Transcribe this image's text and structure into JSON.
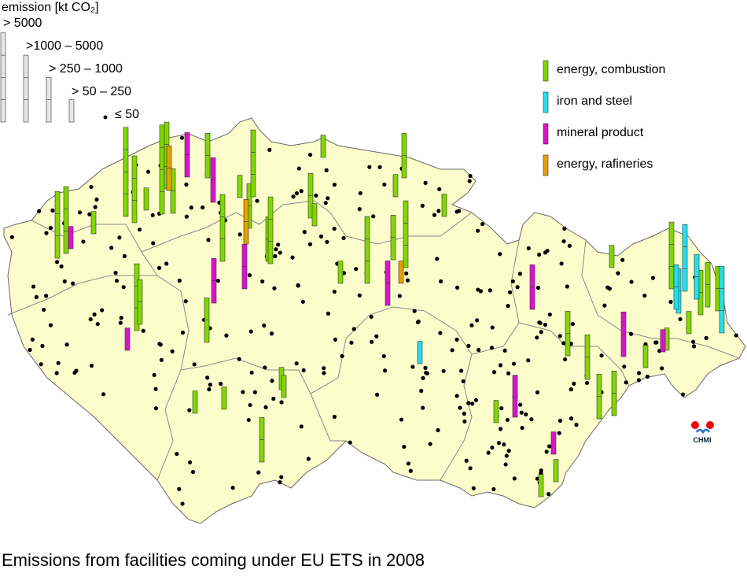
{
  "legend": {
    "title": "emission [kt CO₂]",
    "classes": [
      "> 5000",
      ">1000 – 5000",
      "> 250 – 1000",
      "> 50 – 250",
      "≤ 50"
    ]
  },
  "sectors": [
    {
      "label": "energy, combustion",
      "color": "#80d800"
    },
    {
      "label": "iron and steel",
      "color": "#22e0ee"
    },
    {
      "label": "mineral product",
      "color": "#e010d0"
    },
    {
      "label": "energy, rafineries",
      "color": "#e8a000"
    }
  ],
  "logo": "CHMI",
  "caption": "Emissions from facilities coming under EU ETS in 2008"
}
